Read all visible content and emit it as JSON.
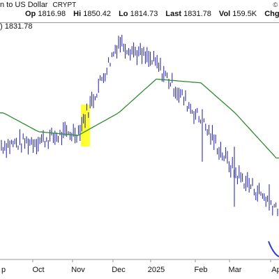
{
  "header": {
    "title": "n to US Dollar",
    "exchange": "CRYPT",
    "copyright": "©",
    "open_label": "Op",
    "open": "1816.98",
    "high_label": "Hi",
    "high": "1850.42",
    "low_label": "Lo",
    "low": "1814.73",
    "last_label": "Last",
    "last": "1831.78",
    "vol_label": "Vol",
    "vol": "159.5K",
    "chg_label": "Chg",
    "chg": "+"
  },
  "legend": {
    "text": ") 1831.78"
  },
  "colors": {
    "price_bars": "#1a1aa6",
    "moving_average": "#2e8b2e",
    "highlight": "#ffff33",
    "blue_curve": "#2b3bd6",
    "separator": "#9a9a9a"
  },
  "chart_data": {
    "type": "line",
    "title": "",
    "xlabel": "",
    "ylabel": "",
    "x_ticks": [
      "p",
      "Oct",
      "Nov",
      "Dec",
      "2025",
      "Feb",
      "Mar",
      "Ap"
    ],
    "x": [
      "Sep",
      "Oct",
      "Nov",
      "Dec",
      "Jan 2025",
      "Feb",
      "Mar",
      "Apr"
    ],
    "series": [
      {
        "values": [
          2420,
          2480,
          2600,
          3800,
          3500,
          2750,
          2050,
          1600
        ]
      },
      {
        "values": [
          2850,
          2600,
          2550,
          2850,
          3300,
          3250,
          2850,
          2250
        ]
      }
    ],
    "highlight_range": [
      "Nov 01 2024",
      "Nov 06 2024"
    ],
    "grid": false
  }
}
